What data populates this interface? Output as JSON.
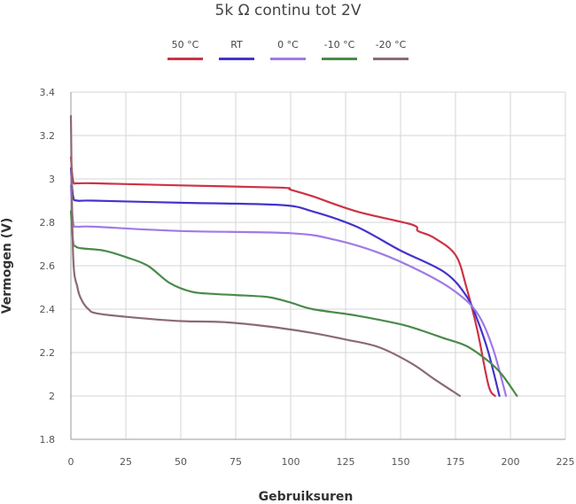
{
  "chart_data": {
    "type": "line",
    "title": "5k Ω continu tot 2V",
    "xlabel": "Gebruiksuren",
    "ylabel": "Vermogen (V)",
    "xlim": [
      0,
      225
    ],
    "ylim": [
      1.8,
      3.4
    ],
    "xticks": [
      "0",
      "25",
      "50",
      "75",
      "100",
      "125",
      "150",
      "175",
      "200",
      "225"
    ],
    "yticks": [
      "1.8",
      "2",
      "2.2",
      "2.4",
      "2.6",
      "2.8",
      "3",
      "3.2",
      "3.4"
    ],
    "grid": true,
    "legend_position": "top",
    "series": [
      {
        "name": "50 °C",
        "color": "#cc3344",
        "x": [
          0,
          1,
          3,
          10,
          50,
          95,
          100,
          110,
          130,
          155,
          158,
          165,
          175,
          180,
          185,
          190,
          193
        ],
        "y": [
          3.1,
          2.99,
          2.98,
          2.98,
          2.97,
          2.96,
          2.95,
          2.92,
          2.85,
          2.79,
          2.76,
          2.73,
          2.65,
          2.5,
          2.3,
          2.05,
          2.0
        ]
      },
      {
        "name": "RT",
        "color": "#4433cc",
        "x": [
          0,
          1,
          3,
          10,
          50,
          95,
          110,
          130,
          150,
          170,
          180,
          185,
          190,
          195
        ],
        "y": [
          3.05,
          2.92,
          2.9,
          2.9,
          2.89,
          2.88,
          2.85,
          2.78,
          2.67,
          2.57,
          2.46,
          2.35,
          2.2,
          2.0
        ]
      },
      {
        "name": "0 °C",
        "color": "#a07ae6",
        "x": [
          0,
          1,
          3,
          10,
          50,
          100,
          120,
          140,
          160,
          175,
          185,
          192,
          198
        ],
        "y": [
          2.97,
          2.8,
          2.78,
          2.78,
          2.76,
          2.75,
          2.72,
          2.66,
          2.57,
          2.48,
          2.38,
          2.22,
          2.0
        ]
      },
      {
        "name": "-10 °C",
        "color": "#4a8a4a",
        "x": [
          0,
          1,
          2,
          5,
          15,
          25,
          35,
          45,
          55,
          65,
          75,
          90,
          100,
          110,
          130,
          150,
          160,
          170,
          180,
          190,
          196,
          203
        ],
        "y": [
          2.85,
          2.71,
          2.69,
          2.68,
          2.67,
          2.64,
          2.6,
          2.52,
          2.48,
          2.47,
          2.465,
          2.455,
          2.43,
          2.4,
          2.37,
          2.33,
          2.3,
          2.265,
          2.23,
          2.16,
          2.1,
          2.0
        ]
      },
      {
        "name": "-20 °C",
        "color": "#8b6a73",
        "x": [
          0,
          1,
          3,
          5,
          8,
          12,
          30,
          50,
          70,
          90,
          110,
          125,
          140,
          155,
          165,
          177
        ],
        "y": [
          3.29,
          2.65,
          2.5,
          2.44,
          2.4,
          2.38,
          2.36,
          2.345,
          2.34,
          2.32,
          2.29,
          2.26,
          2.225,
          2.15,
          2.08,
          2.0
        ]
      }
    ]
  }
}
